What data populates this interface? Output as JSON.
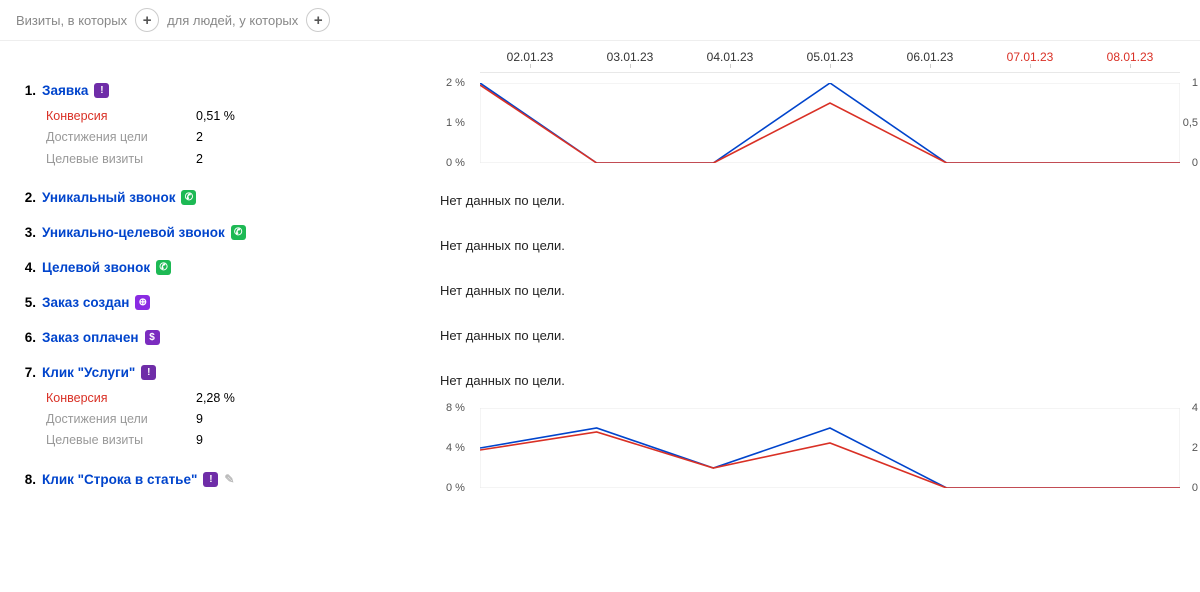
{
  "topbar": {
    "seg1": "Визиты, в которых",
    "seg2": "для людей, у которых"
  },
  "dates": [
    {
      "label": "02.01.23",
      "weekend": false
    },
    {
      "label": "03.01.23",
      "weekend": false
    },
    {
      "label": "04.01.23",
      "weekend": false
    },
    {
      "label": "05.01.23",
      "weekend": false
    },
    {
      "label": "06.01.23",
      "weekend": false
    },
    {
      "label": "07.01.23",
      "weekend": true
    },
    {
      "label": "08.01.23",
      "weekend": true
    }
  ],
  "no_data_text": "Нет данных по цели.",
  "stat_labels": {
    "conversion": "Конверсия",
    "goal_reaches": "Достижения цели",
    "goal_visits": "Целевые визиты"
  },
  "goals": [
    {
      "num": "1.",
      "title": "Заявка",
      "icon": {
        "bg": "#6f2da8",
        "glyph": "!"
      },
      "stats": {
        "conversion": "0,51 %",
        "reaches": "2",
        "visits": "2"
      },
      "chart": {
        "left_ticks": [
          {
            "pos": 0,
            "label": "2 %"
          },
          {
            "pos": 50,
            "label": "1 %"
          },
          {
            "pos": 100,
            "label": "0 %"
          }
        ],
        "right_ticks": [
          {
            "pos": 0,
            "label": "1"
          },
          {
            "pos": 50,
            "label": "0,5"
          },
          {
            "pos": 100,
            "label": "0"
          }
        ],
        "series": [
          {
            "color": "#0044cc",
            "width": 1.6,
            "values": [
              2,
              0,
              0,
              2,
              0,
              0,
              0
            ],
            "ymax": 2
          },
          {
            "color": "#d93025",
            "width": 1.6,
            "values": [
              1.95,
              0,
              0,
              1.5,
              0,
              0,
              0
            ],
            "ymax": 2
          }
        ]
      }
    },
    {
      "num": "2.",
      "title": "Уникальный звонок",
      "icon": {
        "bg": "#1db954",
        "glyph": "✆"
      },
      "no_data": true
    },
    {
      "num": "3.",
      "title": "Уникально-целевой звонок",
      "icon": {
        "bg": "#1db954",
        "glyph": "✆"
      },
      "no_data": true
    },
    {
      "num": "4.",
      "title": "Целевой звонок",
      "icon": {
        "bg": "#1db954",
        "glyph": "✆"
      },
      "no_data": true
    },
    {
      "num": "5.",
      "title": "Заказ создан",
      "icon": {
        "bg": "#8a2be2",
        "glyph": "⊕"
      },
      "no_data": true
    },
    {
      "num": "6.",
      "title": "Заказ оплачен",
      "icon": {
        "bg": "#7b2cbf",
        "glyph": "$"
      },
      "no_data": true
    },
    {
      "num": "7.",
      "title": "Клик \"Услуги\"",
      "icon": {
        "bg": "#6f2da8",
        "glyph": "!"
      },
      "stats": {
        "conversion": "2,28 %",
        "reaches": "9",
        "visits": "9"
      },
      "chart": {
        "left_ticks": [
          {
            "pos": 0,
            "label": "8 %"
          },
          {
            "pos": 50,
            "label": "4 %"
          },
          {
            "pos": 100,
            "label": "0 %"
          }
        ],
        "right_ticks": [
          {
            "pos": 0,
            "label": "4"
          },
          {
            "pos": 50,
            "label": "2"
          },
          {
            "pos": 100,
            "label": "0"
          }
        ],
        "series": [
          {
            "color": "#0044cc",
            "width": 1.6,
            "values": [
              4,
              6,
              2,
              6,
              0,
              0,
              0
            ],
            "ymax": 8
          },
          {
            "color": "#d93025",
            "width": 1.6,
            "values": [
              3.8,
              5.6,
              2,
              4.5,
              0,
              0,
              0
            ],
            "ymax": 8
          }
        ]
      }
    },
    {
      "num": "8.",
      "title": "Клик \"Строка в статье\"",
      "icon": {
        "bg": "#6f2da8",
        "glyph": "!"
      },
      "pencil": true
    }
  ],
  "colors": {
    "link": "#0044cc",
    "red": "#d93025",
    "gray": "#999",
    "grid": "#e8e8e8"
  }
}
